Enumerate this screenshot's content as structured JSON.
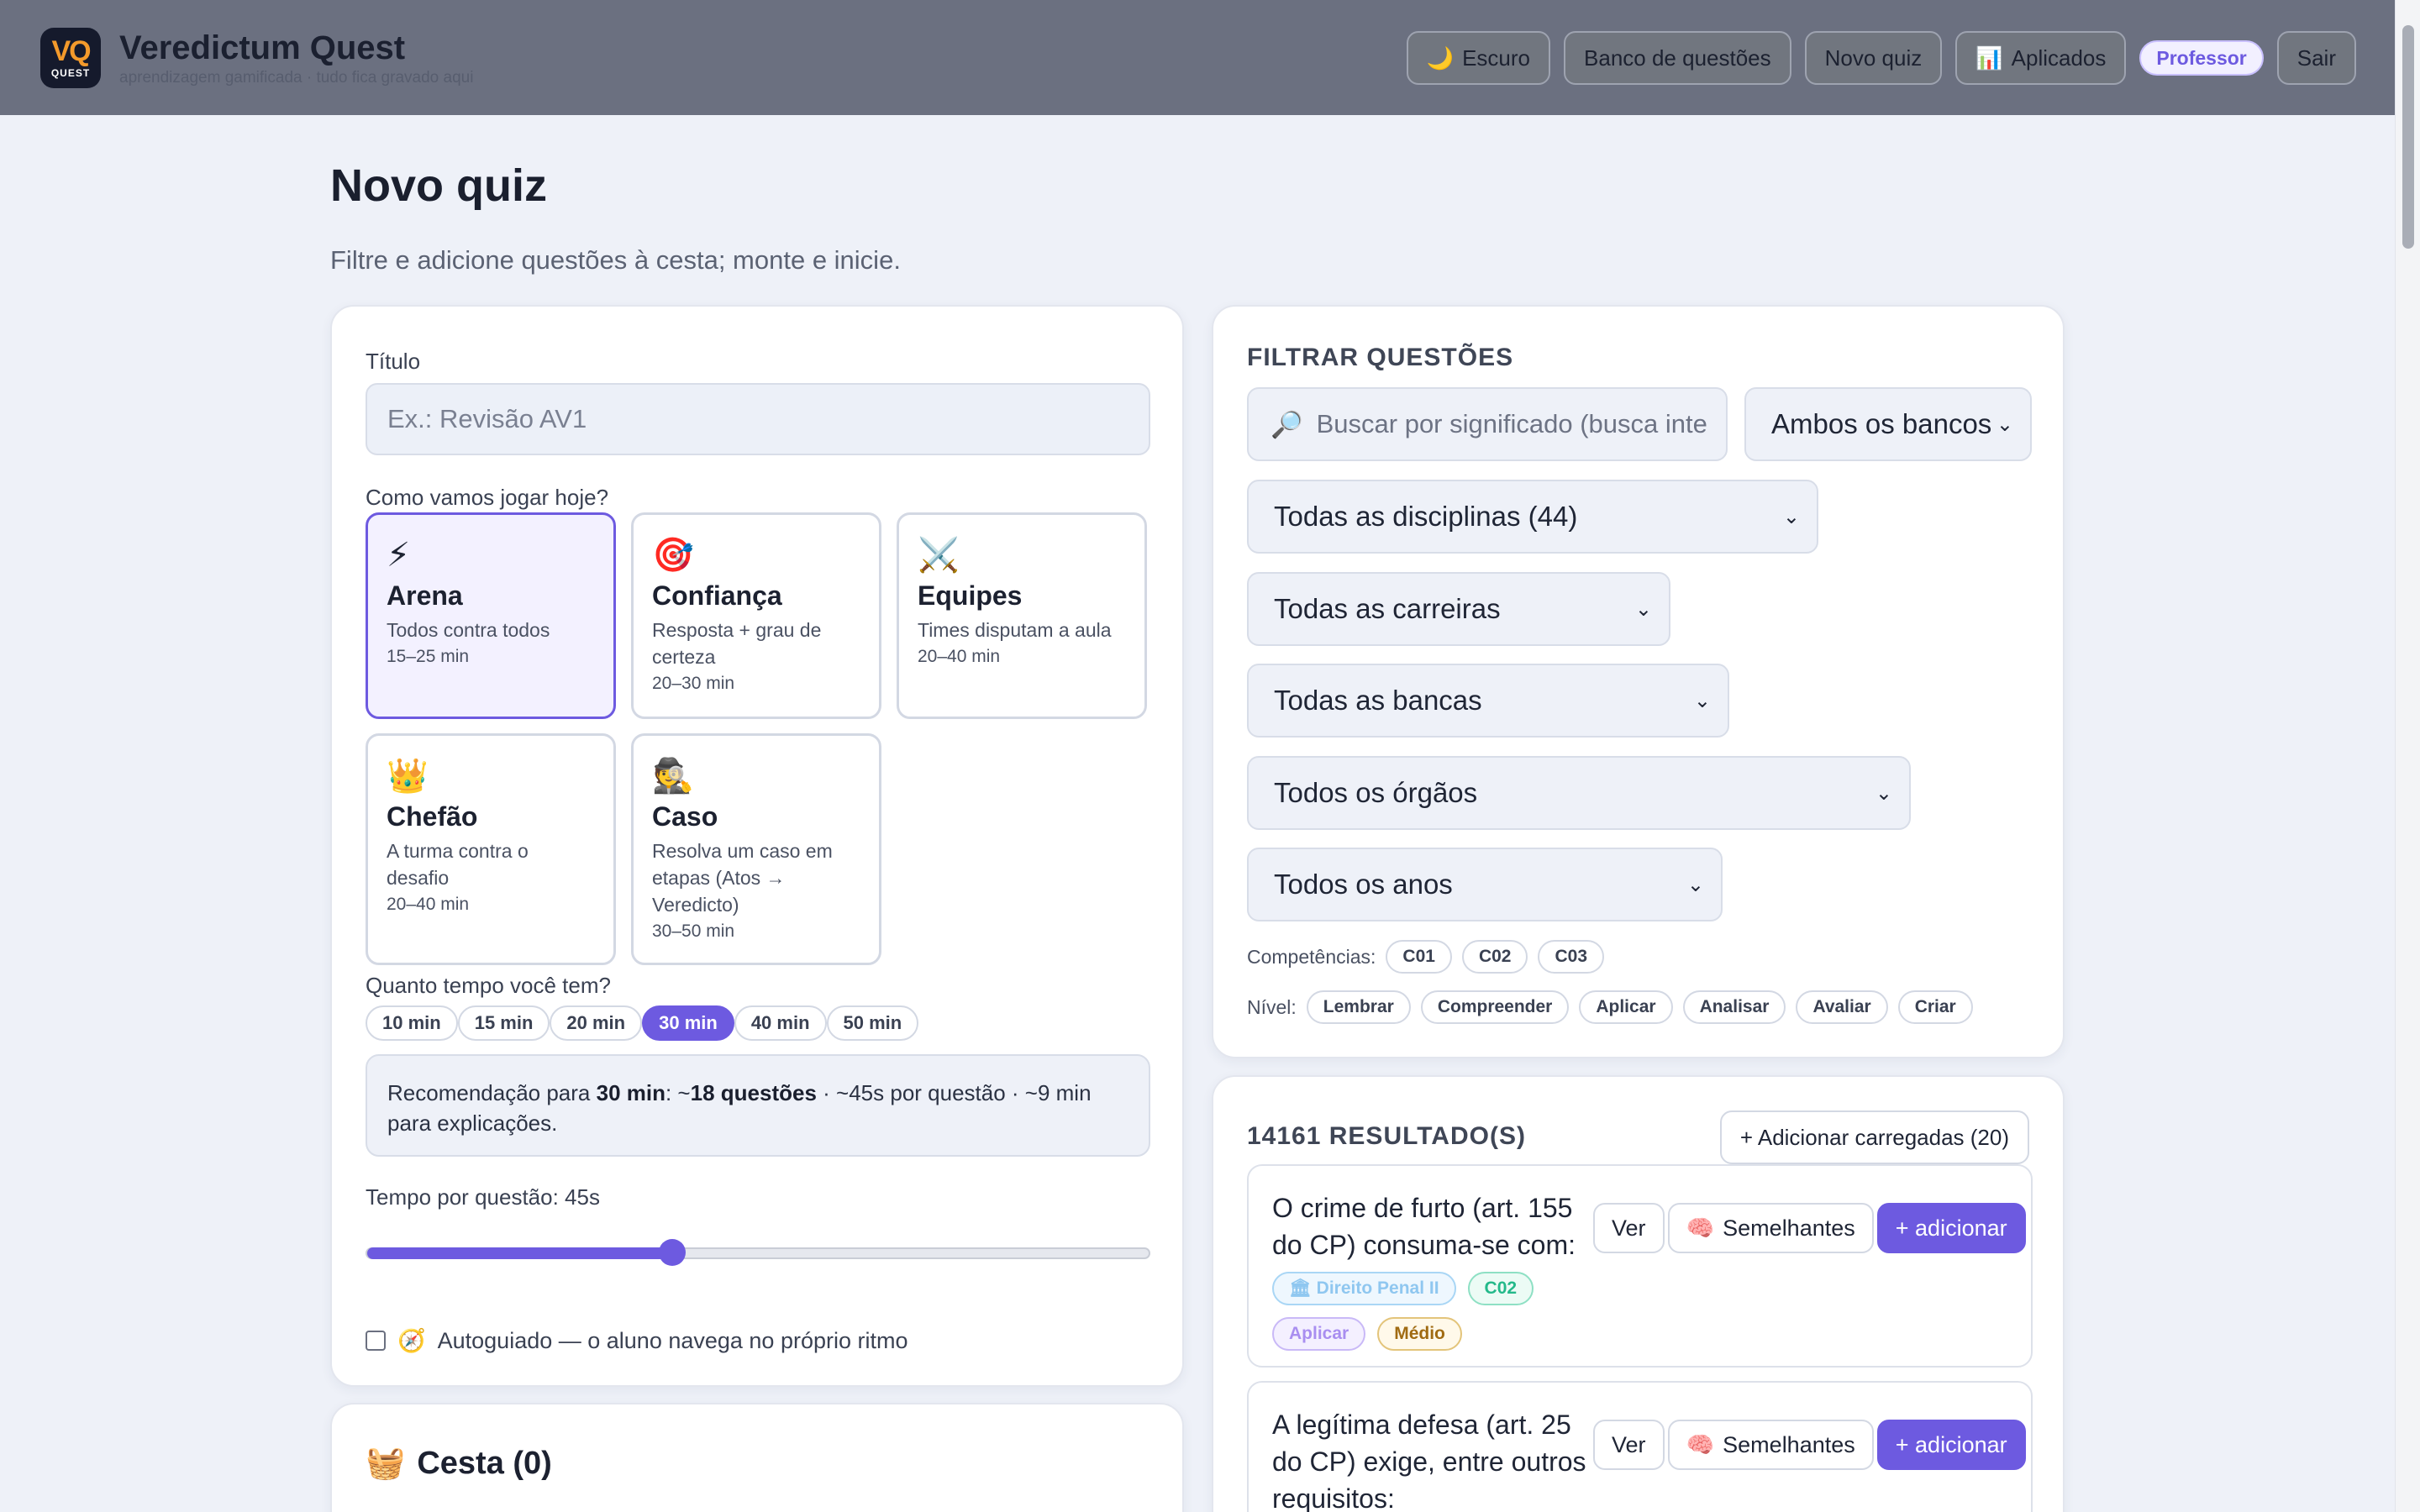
{
  "app": {
    "title": "Veredictum Quest",
    "subtitle": "aprendizagem gamificada · tudo fica gravado aqui",
    "logo_mark": "VQ",
    "logo_sub": "QUEST"
  },
  "nav": {
    "dark_icon": "🌙",
    "dark_label": "Escuro",
    "bank_label": "Banco de questões",
    "new_quiz_label": "Novo quiz",
    "applied_icon": "📊",
    "applied_label": "Aplicados",
    "role_badge": "Professor",
    "logout_label": "Sair"
  },
  "page": {
    "title": "Novo quiz",
    "subtitle": "Filtre e adicione questões à cesta; monte e inicie."
  },
  "form": {
    "title_label": "Título",
    "title_placeholder": "Ex.: Revisão AV1",
    "modes_label": "Como vamos jogar hoje?",
    "modes": [
      {
        "icon": "⚡",
        "icon_name": "lightning-icon",
        "name": "Arena",
        "desc": "Todos contra todos",
        "time": "15–25 min",
        "active": true
      },
      {
        "icon": "🎯",
        "icon_name": "target-icon",
        "name": "Confiança",
        "desc": "Resposta + grau de certeza",
        "time": "20–30 min",
        "active": false
      },
      {
        "icon": "⚔️",
        "icon_name": "crossed-swords-icon",
        "name": "Equipes",
        "desc": "Times disputam a aula",
        "time": "20–40 min",
        "active": false
      },
      {
        "icon": "👑",
        "icon_name": "crown-icon",
        "name": "Chefão",
        "desc": "A turma contra o desafio",
        "time": "20–40 min",
        "active": false
      },
      {
        "icon": "🕵️",
        "icon_name": "detective-icon",
        "name": "Caso",
        "desc": "Resolva um caso em etapas (Atos → Veredicto)",
        "time": "30–50 min",
        "active": false
      }
    ],
    "time_label": "Quanto tempo você tem?",
    "time_options": [
      "10 min",
      "15 min",
      "20 min",
      "30 min",
      "40 min",
      "50 min"
    ],
    "time_selected": "30 min",
    "reco_prefix": "Recomendação para ",
    "reco_time": "30 min",
    "reco_sep": ": ~",
    "reco_questions": "18 questões",
    "reco_rest": " · ~45s por questão · ~9 min para explicações.",
    "per_question_label": "Tempo por questão: 45s",
    "slider_fraction": 0.39,
    "self_paced_icon": "🧭",
    "self_paced_label": "Autoguiado — o aluno navega no próprio ritmo"
  },
  "basket": {
    "icon": "🧺",
    "title": "Cesta (0)"
  },
  "filters": {
    "title": "FILTRAR QUESTÕES",
    "search_icon": "🔎",
    "search_placeholder": "Buscar por significado (busca inte",
    "bank_select": "Ambos os bancos",
    "discipline_select": "Todas as disciplinas (44)",
    "career_select": "Todas as carreiras",
    "board_select": "Todas as bancas",
    "organ_select": "Todos os órgãos",
    "year_select": "Todos os anos",
    "competencies_label": "Competências:",
    "competencies": [
      "C01",
      "C02",
      "C03"
    ],
    "level_label": "Nível:",
    "levels": [
      "Lembrar",
      "Compreender",
      "Aplicar",
      "Analisar",
      "Avaliar",
      "Criar"
    ]
  },
  "results": {
    "count_label": "14161 RESULTADO(S)",
    "add_loaded_label": "+ Adicionar carregadas (20)",
    "view_label": "Ver",
    "similar_icon": "🧠",
    "similar_label": "Semelhantes",
    "add_label": "+ adicionar",
    "items": [
      {
        "text": "O crime de furto (art. 155 do CP) consuma-se com:",
        "discipline_icon": "🏛",
        "discipline": "Direito Penal II",
        "competency": "C02",
        "level": "Aplicar",
        "difficulty": "Médio"
      },
      {
        "text": "A legítima defesa (art. 25 do CP) exige, entre outros requisitos:"
      }
    ]
  },
  "colors": {
    "accent": "#6d5ae0",
    "header_bg": "#6b7080",
    "page_bg": "#eef1f8"
  }
}
